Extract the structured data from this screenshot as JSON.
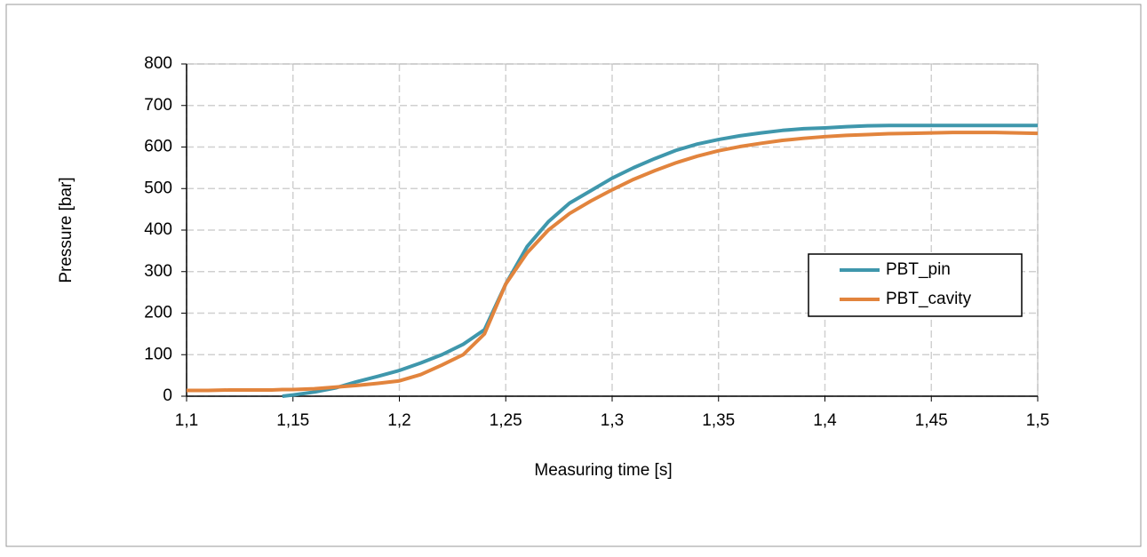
{
  "chart_data": {
    "type": "line",
    "xlabel": "Measuring time   [s]",
    "ylabel": "Pressure   [bar]",
    "x": [
      1.1,
      1.11,
      1.12,
      1.13,
      1.14,
      1.145,
      1.15,
      1.16,
      1.17,
      1.18,
      1.19,
      1.2,
      1.21,
      1.22,
      1.23,
      1.24,
      1.25,
      1.26,
      1.27,
      1.28,
      1.29,
      1.3,
      1.31,
      1.32,
      1.33,
      1.34,
      1.35,
      1.36,
      1.37,
      1.38,
      1.39,
      1.4,
      1.41,
      1.42,
      1.43,
      1.44,
      1.45,
      1.46,
      1.47,
      1.48,
      1.49,
      1.5
    ],
    "series": [
      {
        "name": "PBT_pin",
        "color": "#3f97ac",
        "values": [
          null,
          null,
          null,
          null,
          null,
          0,
          3,
          10,
          20,
          35,
          48,
          62,
          80,
          100,
          125,
          160,
          270,
          360,
          420,
          465,
          495,
          525,
          550,
          572,
          592,
          607,
          618,
          627,
          634,
          640,
          644,
          646,
          649,
          651,
          652,
          652,
          652,
          652,
          652,
          652,
          652,
          652
        ]
      },
      {
        "name": "PBT_cavity",
        "color": "#e2843d",
        "values": [
          14,
          14,
          15,
          15,
          15,
          16,
          16,
          18,
          22,
          26,
          31,
          37,
          52,
          75,
          100,
          150,
          270,
          345,
          400,
          440,
          470,
          497,
          522,
          543,
          562,
          578,
          591,
          601,
          609,
          616,
          621,
          625,
          628,
          630,
          632,
          633,
          634,
          635,
          635,
          635,
          634,
          633
        ]
      }
    ],
    "xlim": [
      1.1,
      1.5
    ],
    "xticks": [
      {
        "value": 1.1,
        "label": "1,1"
      },
      {
        "value": 1.15,
        "label": "1,15"
      },
      {
        "value": 1.2,
        "label": "1,2"
      },
      {
        "value": 1.25,
        "label": "1,25"
      },
      {
        "value": 1.3,
        "label": "1,3"
      },
      {
        "value": 1.35,
        "label": "1,35"
      },
      {
        "value": 1.4,
        "label": "1,4"
      },
      {
        "value": 1.45,
        "label": "1,45"
      },
      {
        "value": 1.5,
        "label": "1,5"
      }
    ],
    "ylim": [
      0,
      800
    ],
    "yticks": [
      0,
      100,
      200,
      300,
      400,
      500,
      600,
      700,
      800
    ],
    "grid": true,
    "legend": "right"
  }
}
